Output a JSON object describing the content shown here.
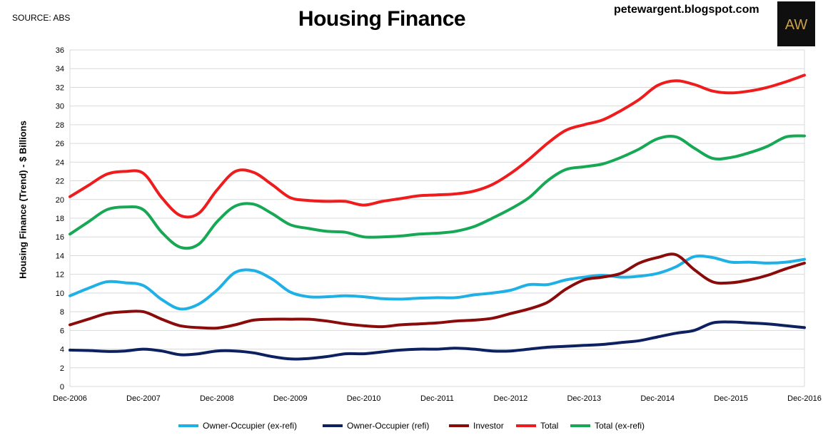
{
  "source_label": "SOURCE: ABS",
  "site_label": "petewargent.blogspot.com",
  "logo_text": "AW",
  "colors": {
    "owner_occupier_ex_refi": "#1fb0e6",
    "owner_occupier_refi": "#0d2060",
    "investor": "#8b0a0a",
    "total": "#ee1c1c",
    "total_ex_refi": "#16a854",
    "grid": "#d9d9d9",
    "logo_gold": "#c9a24b"
  },
  "chart_data": {
    "type": "line",
    "title": "Housing Finance",
    "ylabel": "Housing Finance (Trend) - $ Billions",
    "xlabel": "",
    "ylim": [
      0,
      36
    ],
    "yticks": [
      0,
      2,
      4,
      6,
      8,
      10,
      12,
      14,
      16,
      18,
      20,
      22,
      24,
      26,
      28,
      30,
      32,
      34,
      36
    ],
    "xlim": [
      0,
      10
    ],
    "xtick_labels": [
      "Dec-2006",
      "Dec-2007",
      "Dec-2008",
      "Dec-2009",
      "Dec-2010",
      "Dec-2011",
      "Dec-2012",
      "Dec-2013",
      "Dec-2014",
      "Dec-2015",
      "Dec-2016"
    ],
    "grid": true,
    "legend_position": "bottom",
    "x": [
      0,
      0.25,
      0.5,
      0.75,
      1,
      1.25,
      1.5,
      1.75,
      2,
      2.25,
      2.5,
      2.75,
      3,
      3.25,
      3.5,
      3.75,
      4,
      4.25,
      4.5,
      4.75,
      5,
      5.25,
      5.5,
      5.75,
      6,
      6.25,
      6.5,
      6.75,
      7,
      7.25,
      7.5,
      7.75,
      8,
      8.25,
      8.5,
      8.75,
      9,
      9.25,
      9.5,
      9.75,
      10
    ],
    "series": [
      {
        "name": "Owner-Occupier (ex-refi)",
        "color_key": "owner_occupier_ex_refi",
        "values": [
          9.7,
          10.5,
          11.2,
          11.1,
          10.8,
          9.3,
          8.3,
          8.8,
          10.3,
          12.2,
          12.4,
          11.5,
          10.1,
          9.6,
          9.6,
          9.7,
          9.6,
          9.4,
          9.35,
          9.45,
          9.5,
          9.5,
          9.8,
          10.0,
          10.3,
          10.9,
          10.9,
          11.4,
          11.7,
          11.9,
          11.7,
          11.8,
          12.1,
          12.8,
          13.9,
          13.8,
          13.3,
          13.3,
          13.2,
          13.3,
          13.6
        ]
      },
      {
        "name": "Owner-Occupier (refi)",
        "color_key": "owner_occupier_refi",
        "values": [
          3.9,
          3.85,
          3.75,
          3.8,
          4.0,
          3.8,
          3.4,
          3.5,
          3.8,
          3.8,
          3.6,
          3.2,
          2.95,
          3.0,
          3.2,
          3.5,
          3.5,
          3.7,
          3.9,
          4.0,
          4.0,
          4.1,
          4.0,
          3.8,
          3.8,
          4.0,
          4.2,
          4.3,
          4.4,
          4.5,
          4.7,
          4.9,
          5.3,
          5.7,
          6.0,
          6.8,
          6.9,
          6.8,
          6.7,
          6.5,
          6.3
        ]
      },
      {
        "name": "Investor",
        "color_key": "investor",
        "values": [
          6.6,
          7.2,
          7.8,
          8.0,
          8.0,
          7.2,
          6.5,
          6.3,
          6.25,
          6.6,
          7.1,
          7.2,
          7.2,
          7.2,
          7.0,
          6.7,
          6.5,
          6.4,
          6.6,
          6.7,
          6.8,
          7.0,
          7.1,
          7.3,
          7.8,
          8.3,
          9.0,
          10.4,
          11.4,
          11.7,
          12.1,
          13.2,
          13.8,
          14.1,
          12.5,
          11.2,
          11.1,
          11.4,
          11.9,
          12.6,
          13.2
        ]
      },
      {
        "name": "Total",
        "color_key": "total",
        "values": [
          20.3,
          21.5,
          22.7,
          23.0,
          22.8,
          20.2,
          18.3,
          18.5,
          21.0,
          23.0,
          22.9,
          21.6,
          20.2,
          19.9,
          19.8,
          19.8,
          19.4,
          19.8,
          20.1,
          20.4,
          20.5,
          20.6,
          20.9,
          21.6,
          22.8,
          24.3,
          26.0,
          27.4,
          28.0,
          28.5,
          29.5,
          30.7,
          32.2,
          32.7,
          32.3,
          31.6,
          31.4,
          31.6,
          32.0,
          32.6,
          33.3
        ]
      },
      {
        "name": "Total (ex-refi)",
        "color_key": "total_ex_refi",
        "values": [
          16.3,
          17.6,
          18.9,
          19.2,
          18.9,
          16.5,
          14.9,
          15.2,
          17.6,
          19.3,
          19.5,
          18.5,
          17.3,
          16.9,
          16.6,
          16.5,
          16.0,
          16.0,
          16.1,
          16.3,
          16.4,
          16.6,
          17.1,
          18.0,
          19.0,
          20.2,
          22.0,
          23.2,
          23.5,
          23.8,
          24.5,
          25.4,
          26.5,
          26.7,
          25.5,
          24.4,
          24.5,
          25.0,
          25.7,
          26.7,
          26.8
        ]
      }
    ]
  }
}
